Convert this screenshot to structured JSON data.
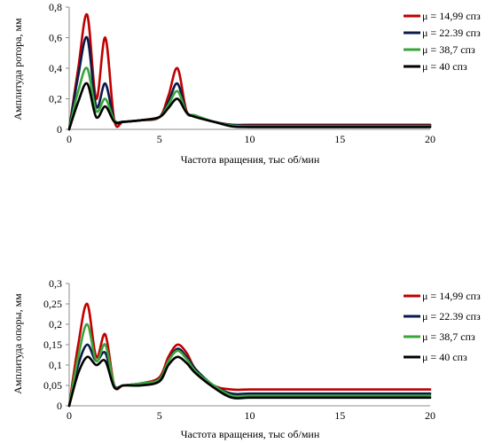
{
  "chart_data": [
    {
      "type": "line",
      "xlabel": "Частота вращения, тыс об/мин",
      "ylabel": "Амплитуда ротора, мм",
      "xlim": [
        0,
        20
      ],
      "ylim": [
        0,
        0.8
      ],
      "x_ticks": [
        "0",
        "5",
        "10",
        "15",
        "20"
      ],
      "y_ticks": [
        "0",
        "0,2",
        "0,4",
        "0,6",
        "0,8"
      ],
      "grid": false,
      "legend": "right",
      "series": [
        {
          "name": "μ = 14,99 спз",
          "color": "#c00000",
          "x": [
            0,
            0.5,
            1.0,
            1.5,
            2.0,
            2.5,
            3.0,
            4.0,
            5.0,
            5.5,
            6.0,
            6.5,
            7.0,
            8.0,
            9.0,
            10.0,
            12.0,
            15.0,
            20.0
          ],
          "y": [
            0,
            0.4,
            0.75,
            0.2,
            0.6,
            0.06,
            0.05,
            0.06,
            0.08,
            0.22,
            0.4,
            0.12,
            0.09,
            0.05,
            0.03,
            0.03,
            0.03,
            0.03,
            0.03
          ]
        },
        {
          "name": "μ = 22.39 спз",
          "color": "#0b1a4a",
          "x": [
            0,
            0.5,
            1.0,
            1.5,
            2.0,
            2.5,
            3.0,
            4.0,
            5.0,
            5.5,
            6.0,
            6.5,
            7.0,
            8.0,
            9.0,
            10.0,
            12.0,
            15.0,
            20.0
          ],
          "y": [
            0,
            0.35,
            0.6,
            0.15,
            0.3,
            0.06,
            0.05,
            0.06,
            0.08,
            0.18,
            0.3,
            0.11,
            0.09,
            0.05,
            0.03,
            0.025,
            0.025,
            0.025,
            0.025
          ]
        },
        {
          "name": "μ = 38,7 спз",
          "color": "#3aa53a",
          "x": [
            0,
            0.5,
            1.0,
            1.5,
            2.0,
            2.5,
            3.0,
            4.0,
            5.0,
            5.5,
            6.0,
            6.5,
            7.0,
            8.0,
            9.0,
            10.0,
            12.0,
            15.0,
            20.0
          ],
          "y": [
            0,
            0.25,
            0.4,
            0.12,
            0.2,
            0.06,
            0.05,
            0.06,
            0.08,
            0.16,
            0.25,
            0.11,
            0.09,
            0.05,
            0.025,
            0.02,
            0.02,
            0.02,
            0.02
          ]
        },
        {
          "name": "μ = 40 спз",
          "color": "#000000",
          "x": [
            0,
            0.5,
            1.0,
            1.5,
            2.0,
            2.5,
            3.0,
            4.0,
            5.0,
            5.5,
            6.0,
            6.5,
            7.0,
            8.0,
            9.0,
            10.0,
            12.0,
            15.0,
            20.0
          ],
          "y": [
            0,
            0.18,
            0.3,
            0.08,
            0.15,
            0.05,
            0.05,
            0.06,
            0.08,
            0.14,
            0.2,
            0.11,
            0.08,
            0.05,
            0.02,
            0.015,
            0.015,
            0.015,
            0.015
          ]
        }
      ]
    },
    {
      "type": "line",
      "xlabel": "Частота вращения, тыс об/мин",
      "ylabel": "Амплитуда опоры, мм",
      "xlim": [
        0,
        20
      ],
      "ylim": [
        0,
        0.3
      ],
      "x_ticks": [
        "0",
        "5",
        "10",
        "15",
        "20"
      ],
      "y_ticks": [
        "0",
        "0,05",
        "0,1",
        "0,15",
        "0,2",
        "0,25",
        "0,3"
      ],
      "grid": false,
      "legend": "right",
      "series": [
        {
          "name": "μ = 14,99 спз",
          "color": "#c00000",
          "x": [
            0,
            0.5,
            1.0,
            1.5,
            2.0,
            2.5,
            3.0,
            4.0,
            5.0,
            5.5,
            6.0,
            6.5,
            7.0,
            8.0,
            9.0,
            10.0,
            12.0,
            15.0,
            20.0
          ],
          "y": [
            0,
            0.15,
            0.25,
            0.12,
            0.175,
            0.05,
            0.05,
            0.055,
            0.07,
            0.12,
            0.15,
            0.13,
            0.09,
            0.05,
            0.04,
            0.04,
            0.04,
            0.04,
            0.04
          ]
        },
        {
          "name": "μ = 22.39 спз",
          "color": "#0b1a4a",
          "x": [
            0,
            0.5,
            1.0,
            1.5,
            2.0,
            2.5,
            3.0,
            4.0,
            5.0,
            5.5,
            6.0,
            6.5,
            7.0,
            8.0,
            9.0,
            10.0,
            12.0,
            15.0,
            20.0
          ],
          "y": [
            0,
            0.1,
            0.15,
            0.11,
            0.13,
            0.05,
            0.05,
            0.055,
            0.065,
            0.11,
            0.14,
            0.12,
            0.09,
            0.05,
            0.03,
            0.03,
            0.03,
            0.03,
            0.03
          ]
        },
        {
          "name": "μ = 38,7 спз",
          "color": "#3aa53a",
          "x": [
            0,
            0.5,
            1.0,
            1.5,
            2.0,
            2.5,
            3.0,
            4.0,
            5.0,
            5.5,
            6.0,
            6.5,
            7.0,
            8.0,
            9.0,
            10.0,
            12.0,
            15.0,
            20.0
          ],
          "y": [
            0,
            0.12,
            0.2,
            0.11,
            0.15,
            0.05,
            0.05,
            0.055,
            0.065,
            0.11,
            0.135,
            0.115,
            0.085,
            0.05,
            0.025,
            0.025,
            0.025,
            0.025,
            0.025
          ]
        },
        {
          "name": "μ = 40 спз",
          "color": "#000000",
          "x": [
            0,
            0.5,
            1.0,
            1.5,
            2.0,
            2.5,
            3.0,
            4.0,
            5.0,
            5.5,
            6.0,
            6.5,
            7.0,
            8.0,
            9.0,
            10.0,
            12.0,
            15.0,
            20.0
          ],
          "y": [
            0,
            0.08,
            0.12,
            0.1,
            0.11,
            0.045,
            0.05,
            0.05,
            0.06,
            0.1,
            0.12,
            0.105,
            0.08,
            0.045,
            0.02,
            0.02,
            0.02,
            0.02,
            0.02
          ]
        }
      ]
    }
  ]
}
